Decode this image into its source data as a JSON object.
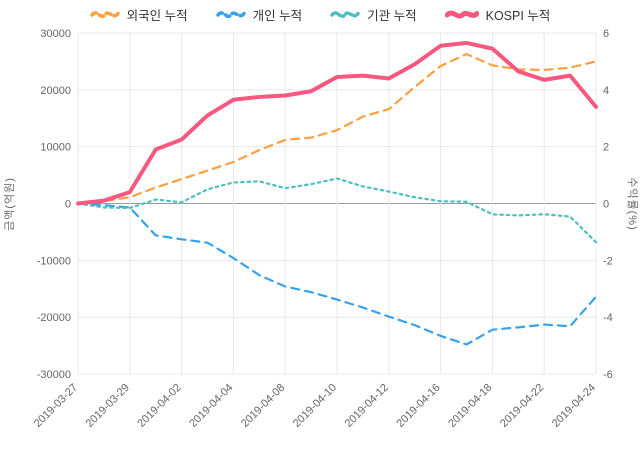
{
  "chart_data": {
    "type": "line",
    "x": [
      "2019-03-27",
      "2019-03-28",
      "2019-03-29",
      "2019-04-01",
      "2019-04-02",
      "2019-04-03",
      "2019-04-04",
      "2019-04-05",
      "2019-04-08",
      "2019-04-09",
      "2019-04-10",
      "2019-04-11",
      "2019-04-12",
      "2019-04-15",
      "2019-04-16",
      "2019-04-17",
      "2019-04-18",
      "2019-04-19",
      "2019-04-22",
      "2019-04-23",
      "2019-04-24"
    ],
    "x_tick_labels": [
      "2019-03-27",
      "2019-03-29",
      "2019-04-02",
      "2019-04-04",
      "2019-04-08",
      "2019-04-10",
      "2019-04-12",
      "2019-04-16",
      "2019-04-18",
      "2019-04-22",
      "2019-04-24"
    ],
    "left_axis": {
      "title": "금액(억원)",
      "min": -30000,
      "max": 30000,
      "ticks": [
        30000,
        20000,
        10000,
        0,
        -10000,
        -20000,
        -30000
      ]
    },
    "right_axis": {
      "title": "수익률(%)",
      "min": -6,
      "max": 6,
      "ticks": [
        6,
        4,
        2,
        0,
        -2,
        -4,
        -6
      ]
    },
    "grid": true,
    "legend_position": "top",
    "series": [
      {
        "name": "외국인 누적",
        "axis": "left",
        "color": "#ff9f40",
        "style": "dashed",
        "values": [
          0,
          400,
          1100,
          2800,
          4300,
          5800,
          7300,
          9400,
          11200,
          11600,
          12900,
          15300,
          16600,
          20500,
          24200,
          26300,
          24300,
          23600,
          23500,
          23900,
          25000
        ]
      },
      {
        "name": "개인 누적",
        "axis": "left",
        "color": "#36a2eb",
        "style": "dashed",
        "values": [
          0,
          -300,
          -700,
          -5600,
          -6300,
          -6900,
          -9600,
          -12600,
          -14600,
          -15600,
          -16900,
          -18300,
          -19900,
          -21400,
          -23300,
          -24800,
          -22200,
          -21800,
          -21300,
          -21600,
          -16400
        ]
      },
      {
        "name": "기관 누적",
        "axis": "left",
        "color": "#4bc0c0",
        "style": "dotted",
        "values": [
          0,
          -700,
          -800,
          700,
          200,
          2500,
          3700,
          3900,
          2700,
          3400,
          4400,
          3000,
          2100,
          1100,
          400,
          300,
          -1900,
          -2100,
          -1900,
          -2300,
          -6800
        ]
      },
      {
        "name": "KOSPI 누적",
        "axis": "right",
        "color": "#f8577f",
        "style": "solid",
        "values": [
          0,
          0.1,
          0.4,
          1.9,
          2.25,
          3.1,
          3.65,
          3.75,
          3.8,
          3.95,
          4.45,
          4.5,
          4.4,
          4.9,
          5.55,
          5.65,
          5.45,
          4.65,
          4.35,
          4.5,
          3.4
        ]
      }
    ]
  }
}
